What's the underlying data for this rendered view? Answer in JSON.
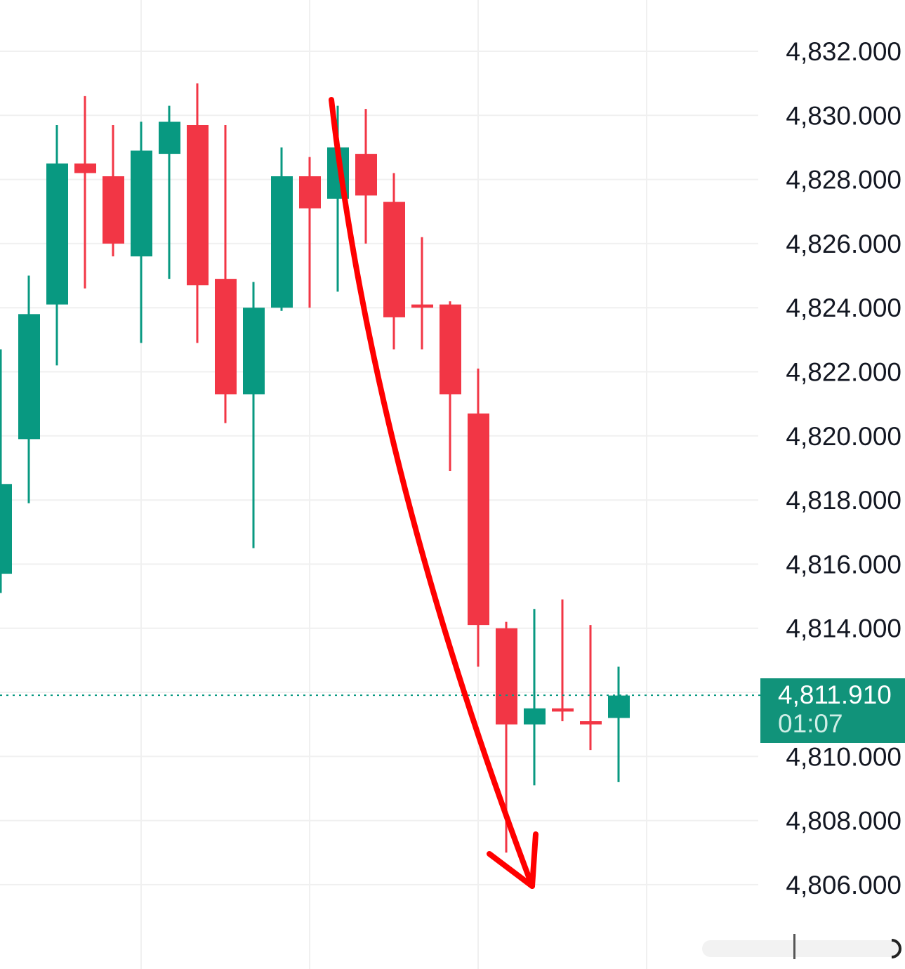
{
  "chart_data": {
    "type": "candlestick",
    "title": "",
    "xlabel": "",
    "ylabel": "",
    "y_axis": {
      "position": "right",
      "ticks": [
        "4,832.000",
        "4,830.000",
        "4,828.000",
        "4,826.000",
        "4,824.000",
        "4,822.000",
        "4,820.000",
        "4,818.000",
        "4,816.000",
        "4,814.000",
        "4,810.000",
        "4,808.000",
        "4,806.000"
      ],
      "tick_values": [
        4832,
        4830,
        4828,
        4826,
        4824,
        4822,
        4820,
        4818,
        4816,
        4814,
        4810,
        4808,
        4806
      ],
      "ylim": [
        4804.7,
        4834.2
      ]
    },
    "grid": true,
    "colors": {
      "up": "#089981",
      "down": "#f23645",
      "annotation_arrow": "#ff0000",
      "grid": "#f0f0f0",
      "last_price_line": "#089981"
    },
    "candles": [
      {
        "open": 4815.7,
        "high": 4822.7,
        "low": 4815.1,
        "close": 4818.5
      },
      {
        "open": 4819.9,
        "high": 4825.0,
        "low": 4817.9,
        "close": 4823.8
      },
      {
        "open": 4824.1,
        "high": 4829.7,
        "low": 4822.2,
        "close": 4828.5
      },
      {
        "open": 4828.5,
        "high": 4830.6,
        "low": 4824.6,
        "close": 4828.2
      },
      {
        "open": 4828.1,
        "high": 4829.7,
        "low": 4825.6,
        "close": 4826.0
      },
      {
        "open": 4825.6,
        "high": 4829.8,
        "low": 4822.9,
        "close": 4828.9
      },
      {
        "open": 4828.8,
        "high": 4830.3,
        "low": 4824.9,
        "close": 4829.8
      },
      {
        "open": 4829.7,
        "high": 4831.0,
        "low": 4822.9,
        "close": 4824.7
      },
      {
        "open": 4824.9,
        "high": 4829.7,
        "low": 4820.4,
        "close": 4821.3
      },
      {
        "open": 4821.3,
        "high": 4824.8,
        "low": 4816.5,
        "close": 4824.0
      },
      {
        "open": 4824.0,
        "high": 4829.0,
        "low": 4823.9,
        "close": 4828.1
      },
      {
        "open": 4828.1,
        "high": 4828.7,
        "low": 4824.0,
        "close": 4827.1
      },
      {
        "open": 4827.4,
        "high": 4830.3,
        "low": 4824.5,
        "close": 4829.0
      },
      {
        "open": 4828.8,
        "high": 4830.2,
        "low": 4826.0,
        "close": 4827.5
      },
      {
        "open": 4827.3,
        "high": 4828.2,
        "low": 4822.7,
        "close": 4823.7
      },
      {
        "open": 4824.1,
        "high": 4826.2,
        "low": 4822.7,
        "close": 4824.0
      },
      {
        "open": 4824.1,
        "high": 4824.2,
        "low": 4818.9,
        "close": 4821.3
      },
      {
        "open": 4820.7,
        "high": 4822.1,
        "low": 4812.8,
        "close": 4814.1
      },
      {
        "open": 4814.0,
        "high": 4814.2,
        "low": 4807.0,
        "close": 4811.0
      },
      {
        "open": 4811.0,
        "high": 4814.6,
        "low": 4809.1,
        "close": 4811.5
      },
      {
        "open": 4811.5,
        "high": 4814.9,
        "low": 4811.1,
        "close": 4811.4
      },
      {
        "open": 4811.1,
        "high": 4814.1,
        "low": 4810.2,
        "close": 4811.0
      },
      {
        "open": 4811.2,
        "high": 4812.8,
        "low": 4809.2,
        "close": 4811.9
      }
    ],
    "last_price": {
      "value": "4,811.910",
      "countdown": "01:07",
      "numeric": 4811.91
    },
    "annotations": [
      {
        "type": "freehand-arrow",
        "direction": "down",
        "color": "#ff0000",
        "from_price": 4830.4,
        "to_price": 4806.0
      }
    ]
  },
  "price_badge": {
    "price": "4,811.910",
    "countdown": "01:07"
  }
}
